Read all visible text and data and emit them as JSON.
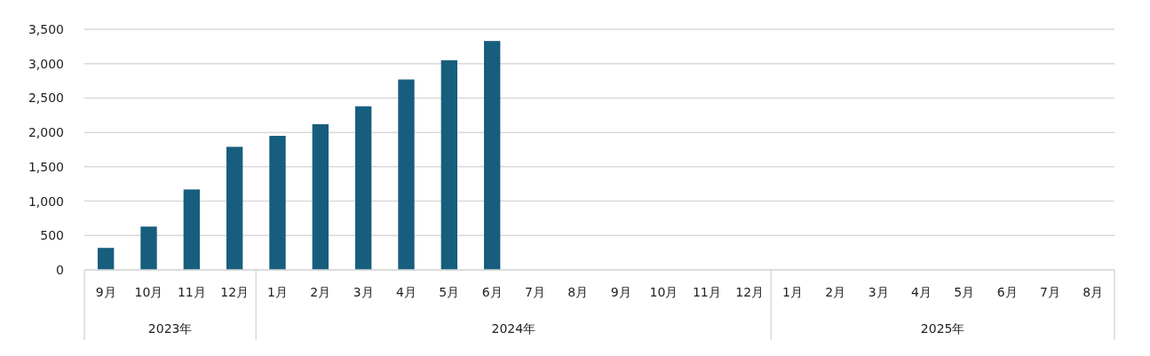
{
  "chart_data": {
    "type": "bar",
    "categories": [
      "9月",
      "10月",
      "11月",
      "12月",
      "1月",
      "2月",
      "3月",
      "4月",
      "5月",
      "6月",
      "7月",
      "8月",
      "9月",
      "10月",
      "11月",
      "12月",
      "1月",
      "2月",
      "3月",
      "4月",
      "5月",
      "6月",
      "7月",
      "8月"
    ],
    "values": [
      320,
      630,
      1170,
      1790,
      1950,
      2120,
      2380,
      2770,
      3050,
      3330,
      null,
      null,
      null,
      null,
      null,
      null,
      null,
      null,
      null,
      null,
      null,
      null,
      null,
      null
    ],
    "color": "#175e7e",
    "ylim": [
      0,
      3500
    ],
    "yticks": [
      {
        "value": 0,
        "label": "0"
      },
      {
        "value": 500,
        "label": "500"
      },
      {
        "value": 1000,
        "label": "1,000"
      },
      {
        "value": 1500,
        "label": "1,500"
      },
      {
        "value": 2000,
        "label": "2,000"
      },
      {
        "value": 2500,
        "label": "2,500"
      },
      {
        "value": 3000,
        "label": "3,000"
      },
      {
        "value": 3500,
        "label": "3,500"
      }
    ],
    "grid": "y",
    "annotations": [
      "2023年",
      "2024年",
      "2025年"
    ]
  }
}
